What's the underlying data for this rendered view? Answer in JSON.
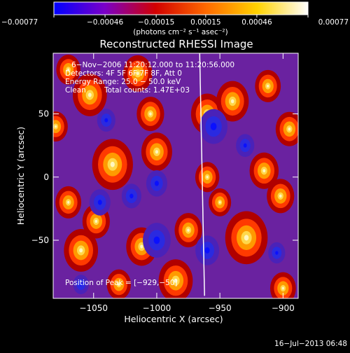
{
  "chart_data": {
    "type": "heatmap",
    "title": "Reconstructed RHESSI Image",
    "xlabel": "Heliocentric X (arcsec)",
    "ylabel": "Heliocentric Y (arcsec)",
    "xlim": [
      -1082,
      -888
    ],
    "ylim": [
      -96,
      98
    ],
    "x_ticks": [
      -1050,
      -1000,
      -950,
      -900
    ],
    "x_tick_labels": [
      "−1050",
      "−1000",
      "−950",
      "−900"
    ],
    "y_ticks": [
      -50,
      0,
      50
    ],
    "y_tick_labels": [
      "−50",
      "0",
      "50"
    ],
    "colorbar": {
      "label": "(photons cm⁻² s⁻¹ asec⁻²)",
      "range": [
        -0.00077,
        0.00077
      ],
      "ticks": [
        -0.00077,
        -0.00046,
        -0.00015,
        0.00015,
        0.00046,
        0.00077
      ],
      "tick_labels": [
        "−0.00077",
        "−0.00046",
        "−0.00015",
        "0.00015",
        "0.00046",
        "0.00077"
      ],
      "colors": [
        "#0000ff",
        "#7a00c8",
        "#d20000",
        "#ff6a00",
        "#ffd200",
        "#ffffff"
      ]
    },
    "info": {
      "time": "6−Nov−2006 11:20:12.000 to 11:20:56.000",
      "detectors": "Detectors: 4F 5F 6F 7F 8F, Att 0",
      "energy": "Energy Range: 25.0 − 50.0 keV",
      "method": "Clean",
      "counts": "Total counts: 1.47E+03"
    },
    "peak_text": "Position of Peak = [−929,−50]",
    "limb_color": "#ffffff",
    "blobs": [
      {
        "x": -1053,
        "y": 65,
        "v": 0.75
      },
      {
        "x": -1035,
        "y": 10,
        "v": 0.95
      },
      {
        "x": -1048,
        "y": -35,
        "v": 0.55
      },
      {
        "x": -1070,
        "y": 85,
        "v": 0.45
      },
      {
        "x": -1015,
        "y": 82,
        "v": 0.6
      },
      {
        "x": -1005,
        "y": 50,
        "v": 0.55
      },
      {
        "x": -1000,
        "y": 20,
        "v": 0.65
      },
      {
        "x": -960,
        "y": 50,
        "v": 0.7
      },
      {
        "x": -940,
        "y": 60,
        "v": 0.7
      },
      {
        "x": -912,
        "y": 72,
        "v": 0.5
      },
      {
        "x": -895,
        "y": 38,
        "v": 0.55
      },
      {
        "x": -915,
        "y": 5,
        "v": 0.6
      },
      {
        "x": -960,
        "y": 0,
        "v": 0.45
      },
      {
        "x": -1070,
        "y": -20,
        "v": 0.5
      },
      {
        "x": -1060,
        "y": -58,
        "v": 0.75
      },
      {
        "x": -1030,
        "y": -85,
        "v": 0.45
      },
      {
        "x": -1012,
        "y": -55,
        "v": 0.65
      },
      {
        "x": -975,
        "y": -42,
        "v": 0.55
      },
      {
        "x": -985,
        "y": -82,
        "v": 0.75
      },
      {
        "x": -929,
        "y": -48,
        "v": 1.0
      },
      {
        "x": -902,
        "y": -15,
        "v": 0.55
      },
      {
        "x": -900,
        "y": -88,
        "v": 0.5
      },
      {
        "x": -950,
        "y": -20,
        "v": 0.4
      },
      {
        "x": -1080,
        "y": 40,
        "v": 0.45
      },
      {
        "x": -1000,
        "y": -5,
        "v": -0.55
      },
      {
        "x": -1040,
        "y": 45,
        "v": -0.45
      },
      {
        "x": -955,
        "y": 40,
        "v": -0.8
      },
      {
        "x": -1000,
        "y": -50,
        "v": -0.8
      },
      {
        "x": -1045,
        "y": -20,
        "v": -0.55
      },
      {
        "x": -960,
        "y": -58,
        "v": -0.65
      },
      {
        "x": -1020,
        "y": -15,
        "v": -0.5
      },
      {
        "x": -930,
        "y": 25,
        "v": -0.45
      },
      {
        "x": -1060,
        "y": -85,
        "v": -0.35
      },
      {
        "x": -905,
        "y": -60,
        "v": -0.4
      }
    ]
  },
  "footer": {
    "timestamp": "16−Jul−2013 06:48"
  }
}
